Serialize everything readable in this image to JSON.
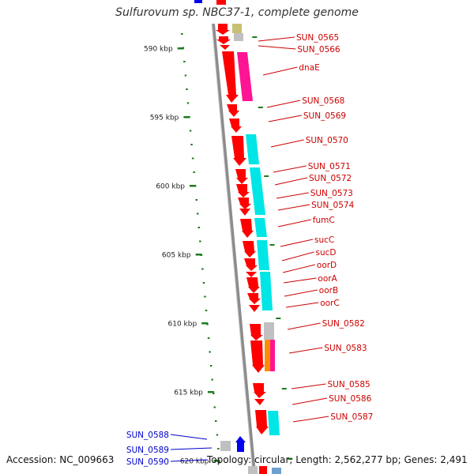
{
  "title": "Sulfurovum sp. NBC37-1, complete genome",
  "footer": {
    "accession": "Accession: NC_009663",
    "topology": "Topology: circular; Length: 2,562,277 bp; Genes: 2,491"
  },
  "colors": {
    "backbone": "#8c8c8c",
    "tick": "#1f7a1f",
    "forward_gene": "#ff0000",
    "reverse_gene": "#0000ee",
    "label_forward": "#cc0000",
    "label_reverse": "#0000cc",
    "cyan_feature": "#00e5e5",
    "magenta_feature": "#ff1493",
    "grey_feature": "#c0c0c0",
    "olive_feature": "#c8c070",
    "orange_feature": "#ff8c00"
  },
  "scale": {
    "tick_labels": [
      {
        "text": "590 kbp",
        "kbp": 590
      },
      {
        "text": "595 kbp",
        "kbp": 595
      },
      {
        "text": "600 kbp",
        "kbp": 600
      },
      {
        "text": "605 kbp",
        "kbp": 605
      },
      {
        "text": "610 kbp",
        "kbp": 610
      },
      {
        "text": "615 kbp",
        "kbp": 615
      },
      {
        "text": "620 kbp",
        "kbp": 620
      }
    ]
  },
  "genes": [
    {
      "label": "SUN_0565",
      "strand": "+",
      "cat": "grey"
    },
    {
      "label": "SUN_0566",
      "strand": "+",
      "cat": "olive"
    },
    {
      "label": "dnaE",
      "strand": "+",
      "cat": "magenta"
    },
    {
      "label": "SUN_0568",
      "strand": "+",
      "cat": "none"
    },
    {
      "label": "SUN_0569",
      "strand": "+",
      "cat": "none"
    },
    {
      "label": "SUN_0570",
      "strand": "+",
      "cat": "cyan"
    },
    {
      "label": "SUN_0571",
      "strand": "+",
      "cat": "cyan"
    },
    {
      "label": "SUN_0572",
      "strand": "+",
      "cat": "cyan"
    },
    {
      "label": "SUN_0573",
      "strand": "+",
      "cat": "cyan"
    },
    {
      "label": "SUN_0574",
      "strand": "+",
      "cat": "cyan"
    },
    {
      "label": "fumC",
      "strand": "+",
      "cat": "cyan"
    },
    {
      "label": "sucC",
      "strand": "+",
      "cat": "cyan"
    },
    {
      "label": "sucD",
      "strand": "+",
      "cat": "cyan"
    },
    {
      "label": "oorD",
      "strand": "+",
      "cat": "cyan"
    },
    {
      "label": "oorA",
      "strand": "+",
      "cat": "cyan"
    },
    {
      "label": "oorB",
      "strand": "+",
      "cat": "cyan"
    },
    {
      "label": "oorC",
      "strand": "+",
      "cat": "cyan"
    },
    {
      "label": "SUN_0582",
      "strand": "+",
      "cat": "grey"
    },
    {
      "label": "SUN_0583",
      "strand": "+",
      "cat": "orange-magenta"
    },
    {
      "label": "SUN_0585",
      "strand": "+",
      "cat": "none"
    },
    {
      "label": "SUN_0586",
      "strand": "+",
      "cat": "none"
    },
    {
      "label": "SUN_0587",
      "strand": "+",
      "cat": "cyan"
    },
    {
      "label": "SUN_0588",
      "strand": "-",
      "cat": "grey"
    },
    {
      "label": "SUN_0589",
      "strand": "-",
      "cat": "none"
    },
    {
      "label": "SUN_0590",
      "strand": "-",
      "cat": "none"
    }
  ]
}
